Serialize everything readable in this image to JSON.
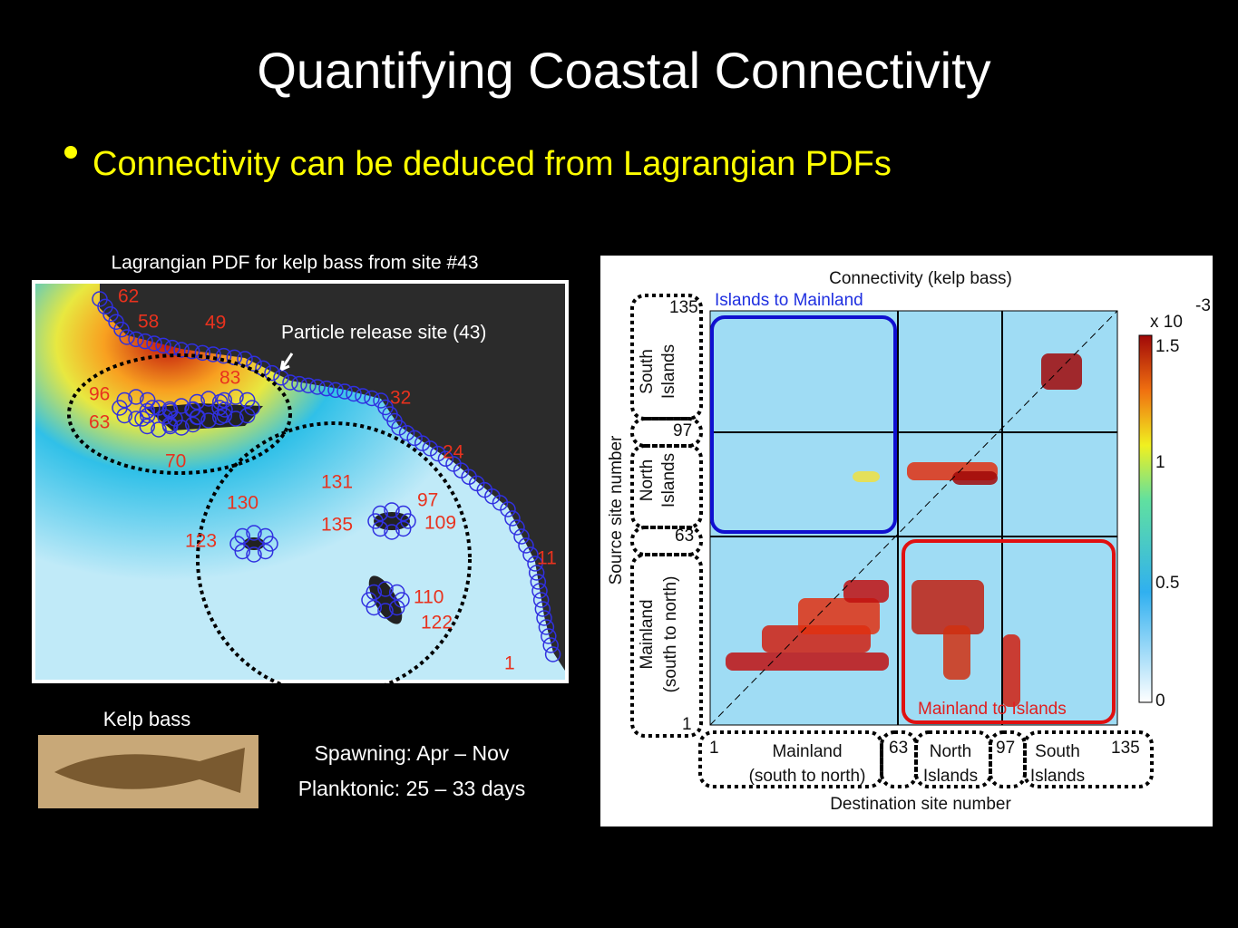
{
  "title": "Quantifying Coastal Connectivity",
  "bullet": "Connectivity can be deduced from Lagrangian PDFs",
  "map": {
    "caption": "Lagrangian PDF for kelp bass from site #43",
    "release_label": "Particle release site (43)",
    "site_labels": [
      "62",
      "58",
      "49",
      "83",
      "96",
      "63",
      "70",
      "32",
      "24",
      "131",
      "130",
      "135",
      "97",
      "109",
      "123",
      "110",
      "122",
      "11",
      "1"
    ]
  },
  "fish": {
    "caption": "Kelp bass",
    "spawning": "Spawning: Apr – Nov",
    "planktonic": "Planktonic: 25 – 33 days"
  },
  "matrix": {
    "title": "Connectivity (kelp bass)",
    "y_label": "Source site number",
    "x_label": "Destination site number",
    "y_ticks": [
      "135",
      "97",
      "63",
      "1"
    ],
    "x_ticks": [
      "1",
      "63",
      "97",
      "135"
    ],
    "y_groups": [
      "South",
      "Islands",
      "North",
      "Islands",
      "Mainland",
      "(south to north)"
    ],
    "x_groups": [
      "Mainland",
      "(south to north)",
      "North",
      "Islands",
      "South",
      "Islands"
    ],
    "blue_box": "Islands to Mainland",
    "red_box": "Mainland to Islands",
    "colorbar_multiplier": "x 10",
    "colorbar_exponent": "-3",
    "colorbar_ticks": [
      "1.5",
      "1",
      "0.5",
      "0"
    ]
  }
}
